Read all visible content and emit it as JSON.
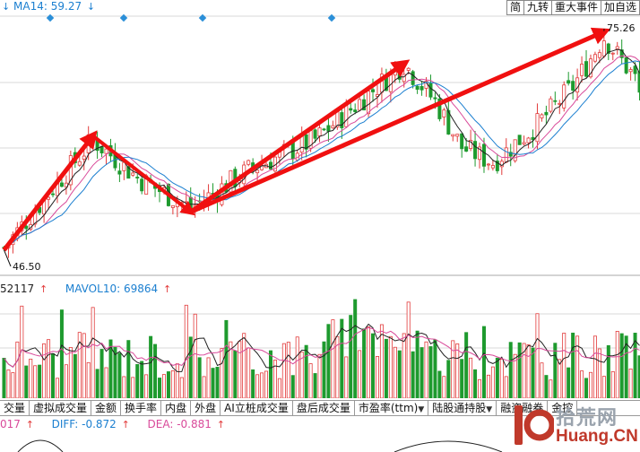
{
  "indicators": {
    "ma_label": "MA14: 59.27",
    "vol_left": "52117",
    "vol_label": "MAVOL10: 69864",
    "macd_left": "017",
    "diff_label": "DIFF: -0.872",
    "dea_label": "DEA: -0.881"
  },
  "toolbar": [
    "简",
    "九转",
    "重大事件",
    "加自选"
  ],
  "price_labels": {
    "high": "75.26",
    "low": "46.50"
  },
  "tabs": [
    {
      "label": "交量"
    },
    {
      "label": "虚拟成交量"
    },
    {
      "label": "金额"
    },
    {
      "label": "换手率"
    },
    {
      "label": "内盘"
    },
    {
      "label": "外盘"
    },
    {
      "label": "AI立桩成交量"
    },
    {
      "label": "盘后成交量"
    },
    {
      "label": "市盈率(ttm)",
      "dropdown": "▼"
    },
    {
      "label": "陆股通持股",
      "dropdown": "▼"
    },
    {
      "label": "融资融券"
    },
    {
      "label": "金控"
    }
  ],
  "watermark": {
    "cn": "拾荒网",
    "en": "Huang.CN"
  },
  "colors": {
    "up": "#e23b3b",
    "down": "#1e9a2e",
    "arrow": "#f01010",
    "ma": "#1b7fd0",
    "grid": "#d8d8d8"
  },
  "chart_data": {
    "type": "candlestick",
    "high_value": 75.26,
    "low_value": 46.5,
    "trend_arrows": [
      {
        "from": [
          0,
          46.5
        ],
        "to": [
          20,
          61.5
        ]
      },
      {
        "from": [
          20,
          61.5
        ],
        "to": [
          42,
          51.5
        ]
      },
      {
        "from": [
          42,
          51.5
        ],
        "to": [
          90,
          71
        ]
      },
      {
        "from": [
          42,
          51.5
        ],
        "to": [
          135,
          75.2
        ]
      }
    ]
  }
}
